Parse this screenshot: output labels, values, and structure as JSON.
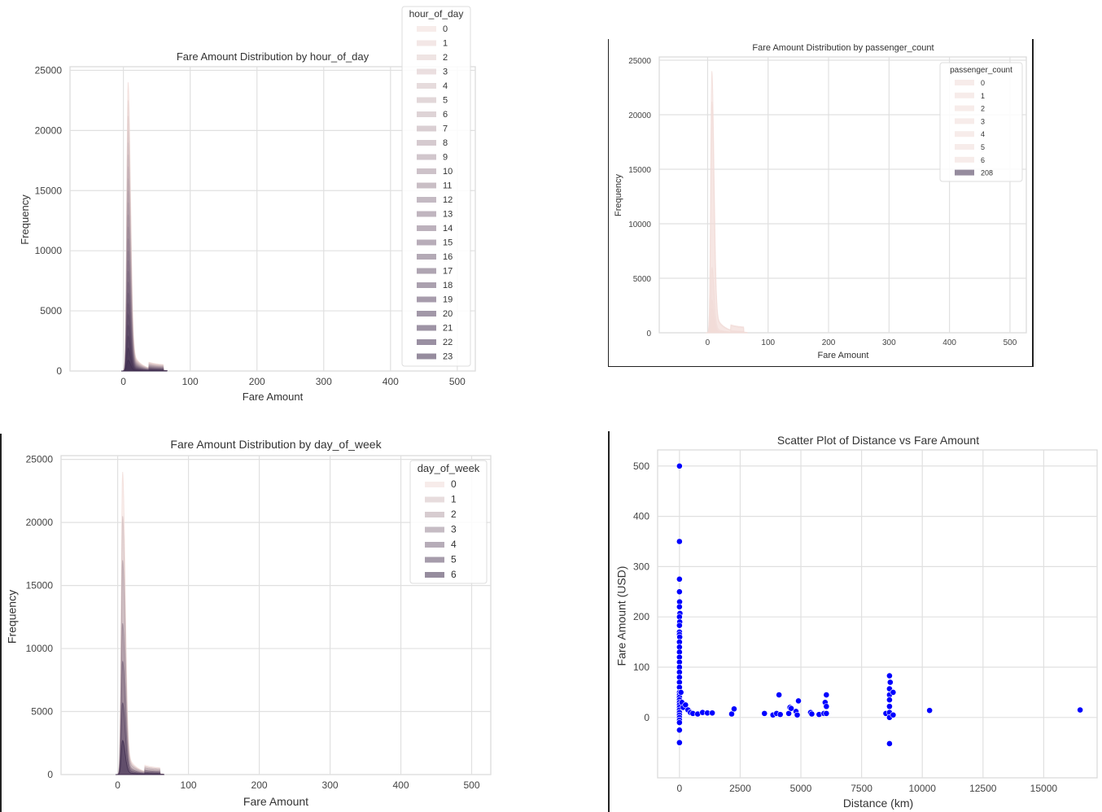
{
  "chart_data": [
    {
      "type": "area",
      "title": "Fare Amount Distribution by hour_of_day",
      "xlabel": "Fare Amount",
      "ylabel": "Frequency",
      "xlim": [
        -80,
        527
      ],
      "ylim": [
        0,
        25300
      ],
      "xticks": [
        0,
        100,
        200,
        300,
        400,
        500
      ],
      "yticks": [
        0,
        5000,
        10000,
        15000,
        20000,
        25000
      ],
      "grid": true,
      "legend": {
        "title": "hour_of_day",
        "placement": "top-right"
      },
      "palette": [
        "#f1dcd8",
        "#3f2d4f"
      ],
      "series": [
        {
          "name": "0",
          "peak": 24000
        },
        {
          "name": "1",
          "peak": 22500
        },
        {
          "name": "2",
          "peak": 21200
        },
        {
          "name": "3",
          "peak": 20000
        },
        {
          "name": "4",
          "peak": 19000
        },
        {
          "name": "5",
          "peak": 18000
        },
        {
          "name": "6",
          "peak": 17000
        },
        {
          "name": "7",
          "peak": 16000
        },
        {
          "name": "8",
          "peak": 15000
        },
        {
          "name": "9",
          "peak": 14000
        },
        {
          "name": "10",
          "peak": 13000
        },
        {
          "name": "11",
          "peak": 12000
        },
        {
          "name": "12",
          "peak": 11000
        },
        {
          "name": "13",
          "peak": 10000
        },
        {
          "name": "14",
          "peak": 9200
        },
        {
          "name": "15",
          "peak": 8300
        },
        {
          "name": "16",
          "peak": 7400
        },
        {
          "name": "17",
          "peak": 6500
        },
        {
          "name": "18",
          "peak": 5600
        },
        {
          "name": "19",
          "peak": 4700
        },
        {
          "name": "20",
          "peak": 3800
        },
        {
          "name": "21",
          "peak": 2900
        },
        {
          "name": "22",
          "peak": 1900
        },
        {
          "name": "23",
          "peak": 900
        }
      ]
    },
    {
      "type": "area",
      "title": "Fare Amount Distribution by passenger_count",
      "xlabel": "Fare Amount",
      "ylabel": "Frequency",
      "xlim": [
        -80,
        527
      ],
      "ylim": [
        0,
        25300
      ],
      "xticks": [
        0,
        100,
        200,
        300,
        400,
        500
      ],
      "yticks": [
        0,
        5000,
        10000,
        15000,
        20000,
        25000
      ],
      "grid": true,
      "legend": {
        "title": "passenger_count",
        "placement": "top-right"
      },
      "palette": [
        "#f1dcd8",
        "#3f2d4f"
      ],
      "series": [
        {
          "name": "0",
          "peak": 24000
        },
        {
          "name": "1",
          "peak": 21200
        },
        {
          "name": "2",
          "peak": 6000
        },
        {
          "name": "3",
          "peak": 3000
        },
        {
          "name": "4",
          "peak": 2200
        },
        {
          "name": "5",
          "peak": 1500
        },
        {
          "name": "6",
          "peak": 600
        },
        {
          "name": "208",
          "peak": 0
        }
      ],
      "series_colors": [
        "#f1dcd8",
        "#f1dcd8",
        "#f1dcd8",
        "#f1dcd8",
        "#f1dcd8",
        "#f1dcd8",
        "#f1dcd8",
        "#3f2d4f"
      ]
    },
    {
      "type": "area",
      "title": "Fare Amount Distribution by day_of_week",
      "xlabel": "Fare Amount",
      "ylabel": "Frequency",
      "xlim": [
        -80,
        527
      ],
      "ylim": [
        0,
        25300
      ],
      "xticks": [
        0,
        100,
        200,
        300,
        400,
        500
      ],
      "yticks": [
        0,
        5000,
        10000,
        15000,
        20000,
        25000
      ],
      "grid": true,
      "legend": {
        "title": "day_of_week",
        "placement": "top-right"
      },
      "palette": [
        "#f1dcd8",
        "#3f2d4f"
      ],
      "series": [
        {
          "name": "0",
          "peak": 24000
        },
        {
          "name": "1",
          "peak": 20500
        },
        {
          "name": "2",
          "peak": 17000
        },
        {
          "name": "3",
          "peak": 12000
        },
        {
          "name": "4",
          "peak": 9000
        },
        {
          "name": "5",
          "peak": 5700
        },
        {
          "name": "6",
          "peak": 2700
        }
      ]
    },
    {
      "type": "scatter",
      "title": "Scatter Plot of Distance vs Fare Amount",
      "xlabel": "Distance (km)",
      "ylabel": "Fare Amount (USD)",
      "xlim": [
        -900,
        17200
      ],
      "ylim": [
        -120,
        532
      ],
      "xticks": [
        0,
        2500,
        5000,
        7500,
        10000,
        12500,
        15000
      ],
      "yticks": [
        0,
        100,
        200,
        300,
        400,
        500
      ],
      "grid": true,
      "color": "#0000ff",
      "points": [
        [
          0,
          500
        ],
        [
          0,
          350
        ],
        [
          0,
          275
        ],
        [
          0,
          250
        ],
        [
          5,
          230
        ],
        [
          0,
          220
        ],
        [
          20,
          207
        ],
        [
          0,
          200
        ],
        [
          10,
          190
        ],
        [
          0,
          183
        ],
        [
          0,
          170
        ],
        [
          0,
          165
        ],
        [
          10,
          160
        ],
        [
          0,
          150
        ],
        [
          0,
          140
        ],
        [
          0,
          130
        ],
        [
          0,
          120
        ],
        [
          0,
          110
        ],
        [
          0,
          100
        ],
        [
          0,
          90
        ],
        [
          0,
          80
        ],
        [
          0,
          70
        ],
        [
          0,
          60
        ],
        [
          0,
          50
        ],
        [
          0,
          45
        ],
        [
          0,
          40
        ],
        [
          0,
          35
        ],
        [
          0,
          30
        ],
        [
          0,
          25
        ],
        [
          0,
          20
        ],
        [
          0,
          15
        ],
        [
          0,
          10
        ],
        [
          0,
          5
        ],
        [
          0,
          0
        ],
        [
          0,
          -5
        ],
        [
          0,
          -10
        ],
        [
          0,
          -25
        ],
        [
          0,
          -50
        ],
        [
          60,
          50
        ],
        [
          100,
          30
        ],
        [
          150,
          20
        ],
        [
          250,
          25
        ],
        [
          350,
          15
        ],
        [
          450,
          10
        ],
        [
          550,
          8
        ],
        [
          750,
          7
        ],
        [
          950,
          10
        ],
        [
          1150,
          9
        ],
        [
          1350,
          9
        ],
        [
          2150,
          7
        ],
        [
          2250,
          17
        ],
        [
          3500,
          8
        ],
        [
          3850,
          5
        ],
        [
          4000,
          8
        ],
        [
          4100,
          45
        ],
        [
          4150,
          6
        ],
        [
          4500,
          8
        ],
        [
          4550,
          20
        ],
        [
          4600,
          18
        ],
        [
          4800,
          12
        ],
        [
          4850,
          5
        ],
        [
          4900,
          33
        ],
        [
          5400,
          10
        ],
        [
          5450,
          7
        ],
        [
          5750,
          6
        ],
        [
          5950,
          8
        ],
        [
          6000,
          30
        ],
        [
          6050,
          45
        ],
        [
          6050,
          22
        ],
        [
          6050,
          8
        ],
        [
          8500,
          8
        ],
        [
          8650,
          83
        ],
        [
          8680,
          70
        ],
        [
          8650,
          57
        ],
        [
          8650,
          45
        ],
        [
          8650,
          35
        ],
        [
          8650,
          22
        ],
        [
          8650,
          10
        ],
        [
          8650,
          0
        ],
        [
          8650,
          -52
        ],
        [
          8800,
          50
        ],
        [
          8800,
          5
        ],
        [
          10300,
          14
        ],
        [
          16500,
          15
        ]
      ]
    }
  ]
}
